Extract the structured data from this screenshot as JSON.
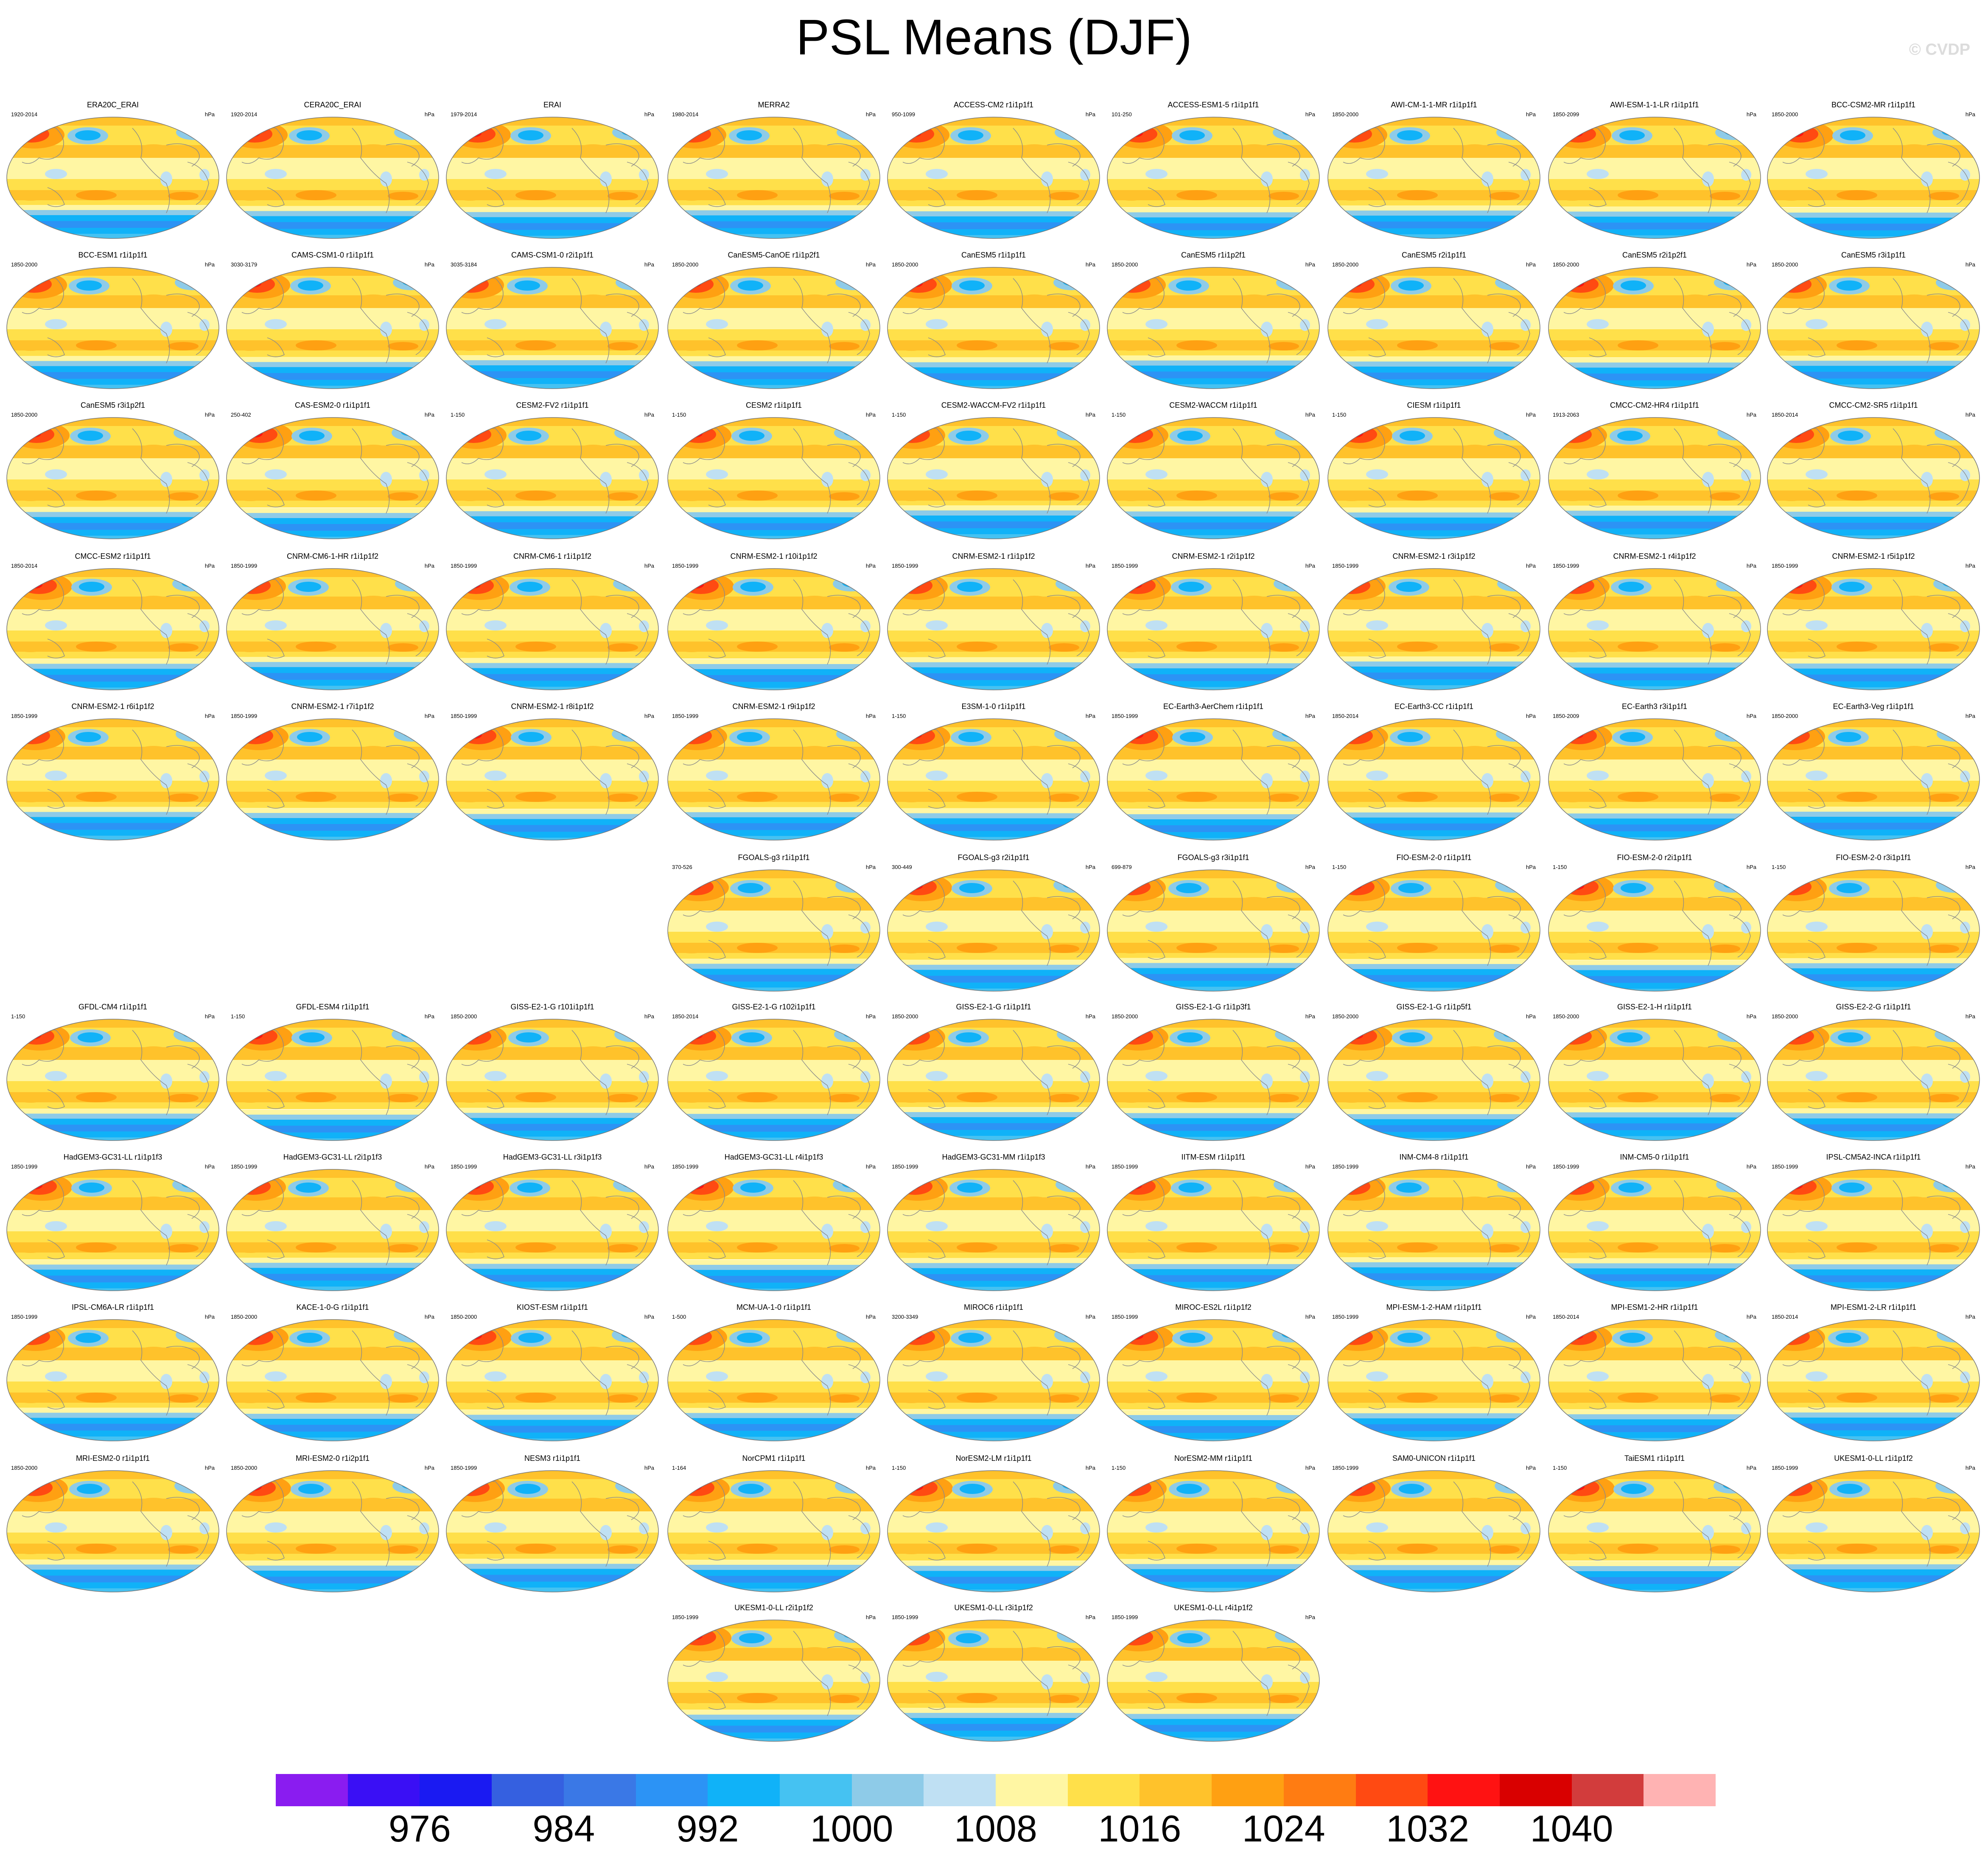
{
  "title": "PSL Means (DJF)",
  "watermark": "© CVDP",
  "units": "hPa",
  "colorbar": {
    "colors": [
      "#8a1cf0",
      "#3a0ff5",
      "#1a1af2",
      "#3560e0",
      "#3a78e6",
      "#2c93f5",
      "#10b2f8",
      "#45c2f2",
      "#8ecbe8",
      "#bfe0f3",
      "#fff6a3",
      "#ffe04a",
      "#ffc22b",
      "#ffa012",
      "#ff7c12",
      "#ff4a12",
      "#ff1212",
      "#d90000",
      "#d23c3c",
      "#ffb3b3"
    ],
    "labels": [
      "976",
      "984",
      "992",
      "1000",
      "1008",
      "1016",
      "1024",
      "1032",
      "1040"
    ]
  },
  "panels": [
    {
      "name": "ERA20C_ERAI",
      "years": "1920-2014"
    },
    {
      "name": "CERA20C_ERAI",
      "years": "1920-2014"
    },
    {
      "name": "ERAI",
      "years": "1979-2014"
    },
    {
      "name": "MERRA2",
      "years": "1980-2014"
    },
    {
      "name": "ACCESS-CM2 r1i1p1f1",
      "years": "950-1099"
    },
    {
      "name": "ACCESS-ESM1-5 r1i1p1f1",
      "years": "101-250"
    },
    {
      "name": "AWI-CM-1-1-MR r1i1p1f1",
      "years": "1850-2000"
    },
    {
      "name": "AWI-ESM-1-1-LR r1i1p1f1",
      "years": "1850-2099"
    },
    {
      "name": "BCC-CSM2-MR r1i1p1f1",
      "years": "1850-2000"
    },
    {
      "name": "BCC-ESM1 r1i1p1f1",
      "years": "1850-2000"
    },
    {
      "name": "CAMS-CSM1-0 r1i1p1f1",
      "years": "3030-3179"
    },
    {
      "name": "CAMS-CSM1-0 r2i1p1f1",
      "years": "3035-3184"
    },
    {
      "name": "CanESM5-CanOE r1i1p2f1",
      "years": "1850-2000"
    },
    {
      "name": "CanESM5 r1i1p1f1",
      "years": "1850-2000"
    },
    {
      "name": "CanESM5 r1i1p2f1",
      "years": "1850-2000"
    },
    {
      "name": "CanESM5 r2i1p1f1",
      "years": "1850-2000"
    },
    {
      "name": "CanESM5 r2i1p2f1",
      "years": "1850-2000"
    },
    {
      "name": "CanESM5 r3i1p1f1",
      "years": "1850-2000"
    },
    {
      "name": "CanESM5 r3i1p2f1",
      "years": "1850-2000"
    },
    {
      "name": "CAS-ESM2-0 r1i1p1f1",
      "years": "250-402"
    },
    {
      "name": "CESM2-FV2 r1i1p1f1",
      "years": "1-150"
    },
    {
      "name": "CESM2 r1i1p1f1",
      "years": "1-150"
    },
    {
      "name": "CESM2-WACCM-FV2 r1i1p1f1",
      "years": "1-150"
    },
    {
      "name": "CESM2-WACCM r1i1p1f1",
      "years": "1-150"
    },
    {
      "name": "CIESM r1i1p1f1",
      "years": "1-150"
    },
    {
      "name": "CMCC-CM2-HR4 r1i1p1f1",
      "years": "1913-2063"
    },
    {
      "name": "CMCC-CM2-SR5 r1i1p1f1",
      "years": "1850-2014"
    },
    {
      "name": "CMCC-ESM2 r1i1p1f1",
      "years": "1850-2014"
    },
    {
      "name": "CNRM-CM6-1-HR r1i1p1f2",
      "years": "1850-1999"
    },
    {
      "name": "CNRM-CM6-1 r1i1p1f2",
      "years": "1850-1999"
    },
    {
      "name": "CNRM-ESM2-1 r10i1p1f2",
      "years": "1850-1999"
    },
    {
      "name": "CNRM-ESM2-1 r1i1p1f2",
      "years": "1850-1999"
    },
    {
      "name": "CNRM-ESM2-1 r2i1p1f2",
      "years": "1850-1999"
    },
    {
      "name": "CNRM-ESM2-1 r3i1p1f2",
      "years": "1850-1999"
    },
    {
      "name": "CNRM-ESM2-1 r4i1p1f2",
      "years": "1850-1999"
    },
    {
      "name": "CNRM-ESM2-1 r5i1p1f2",
      "years": "1850-1999"
    },
    {
      "name": "CNRM-ESM2-1 r6i1p1f2",
      "years": "1850-1999"
    },
    {
      "name": "CNRM-ESM2-1 r7i1p1f2",
      "years": "1850-1999"
    },
    {
      "name": "CNRM-ESM2-1 r8i1p1f2",
      "years": "1850-1999"
    },
    {
      "name": "CNRM-ESM2-1 r9i1p1f2",
      "years": "1850-1999"
    },
    {
      "name": "E3SM-1-0 r1i1p1f1",
      "years": "1-150"
    },
    {
      "name": "EC-Earth3-AerChem r1i1p1f1",
      "years": "1850-1999"
    },
    {
      "name": "EC-Earth3-CC r1i1p1f1",
      "years": "1850-2014"
    },
    {
      "name": "EC-Earth3 r3i1p1f1",
      "years": "1850-2009"
    },
    {
      "name": "EC-Earth3-Veg r1i1p1f1",
      "years": "1850-2000"
    },
    {
      "name": "FGOALS-g3 r1i1p1f1",
      "years": "370-526"
    },
    {
      "name": "FGOALS-g3 r2i1p1f1",
      "years": "300-449"
    },
    {
      "name": "FGOALS-g3 r3i1p1f1",
      "years": "699-879"
    },
    {
      "name": "FIO-ESM-2-0 r1i1p1f1",
      "years": "1-150"
    },
    {
      "name": "FIO-ESM-2-0 r2i1p1f1",
      "years": "1-150"
    },
    {
      "name": "FIO-ESM-2-0 r3i1p1f1",
      "years": "1-150"
    },
    {
      "name": "GFDL-CM4 r1i1p1f1",
      "years": "1-150"
    },
    {
      "name": "GFDL-ESM4 r1i1p1f1",
      "years": "1-150"
    },
    {
      "name": "GISS-E2-1-G r101i1p1f1",
      "years": "1850-2000"
    },
    {
      "name": "GISS-E2-1-G r102i1p1f1",
      "years": "1850-2014"
    },
    {
      "name": "GISS-E2-1-G r1i1p1f1",
      "years": "1850-2000"
    },
    {
      "name": "GISS-E2-1-G r1i1p3f1",
      "years": "1850-2000"
    },
    {
      "name": "GISS-E2-1-G r1i1p5f1",
      "years": "1850-2000"
    },
    {
      "name": "GISS-E2-1-H r1i1p1f1",
      "years": "1850-2000"
    },
    {
      "name": "GISS-E2-2-G r1i1p1f1",
      "years": "1850-2000"
    },
    {
      "name": "HadGEM3-GC31-LL r1i1p1f3",
      "years": "1850-1999"
    },
    {
      "name": "HadGEM3-GC31-LL r2i1p1f3",
      "years": "1850-1999"
    },
    {
      "name": "HadGEM3-GC31-LL r3i1p1f3",
      "years": "1850-1999"
    },
    {
      "name": "HadGEM3-GC31-LL r4i1p1f3",
      "years": "1850-1999"
    },
    {
      "name": "HadGEM3-GC31-MM r1i1p1f3",
      "years": "1850-1999"
    },
    {
      "name": "IITM-ESM r1i1p1f1",
      "years": "1850-1999"
    },
    {
      "name": "INM-CM4-8 r1i1p1f1",
      "years": "1850-1999"
    },
    {
      "name": "INM-CM5-0 r1i1p1f1",
      "years": "1850-1999"
    },
    {
      "name": "IPSL-CM5A2-INCA r1i1p1f1",
      "years": "1850-1999"
    },
    {
      "name": "IPSL-CM6A-LR r1i1p1f1",
      "years": "1850-1999"
    },
    {
      "name": "KACE-1-0-G r1i1p1f1",
      "years": "1850-2000"
    },
    {
      "name": "KIOST-ESM r1i1p1f1",
      "years": "1850-2000"
    },
    {
      "name": "MCM-UA-1-0 r1i1p1f1",
      "years": "1-500"
    },
    {
      "name": "MIROC6 r1i1p1f1",
      "years": "3200-3349"
    },
    {
      "name": "MIROC-ES2L r1i1p1f2",
      "years": "1850-1999"
    },
    {
      "name": "MPI-ESM-1-2-HAM r1i1p1f1",
      "years": "1850-1999"
    },
    {
      "name": "MPI-ESM1-2-HR r1i1p1f1",
      "years": "1850-2014"
    },
    {
      "name": "MPI-ESM1-2-LR r1i1p1f1",
      "years": "1850-2014"
    },
    {
      "name": "MRI-ESM2-0 r1i1p1f1",
      "years": "1850-2000"
    },
    {
      "name": "MRI-ESM2-0 r1i2p1f1",
      "years": "1850-2000"
    },
    {
      "name": "NESM3 r1i1p1f1",
      "years": "1850-1999"
    },
    {
      "name": "NorCPM1 r1i1p1f1",
      "years": "1-164"
    },
    {
      "name": "NorESM2-LM r1i1p1f1",
      "years": "1-150"
    },
    {
      "name": "NorESM2-MM r1i1p1f1",
      "years": "1-150"
    },
    {
      "name": "SAM0-UNICON r1i1p1f1",
      "years": "1850-1999"
    },
    {
      "name": "TaiESM1 r1i1p1f1",
      "years": "1-150"
    },
    {
      "name": "UKESM1-0-LL r1i1p1f2",
      "years": "1850-1999"
    },
    {
      "name": "UKESM1-0-LL r2i1p1f2",
      "years": "1850-1999"
    },
    {
      "name": "UKESM1-0-LL r3i1p1f2",
      "years": "1850-1999"
    },
    {
      "name": "UKESM1-0-LL r4i1p1f2",
      "years": "1850-1999"
    }
  ]
}
